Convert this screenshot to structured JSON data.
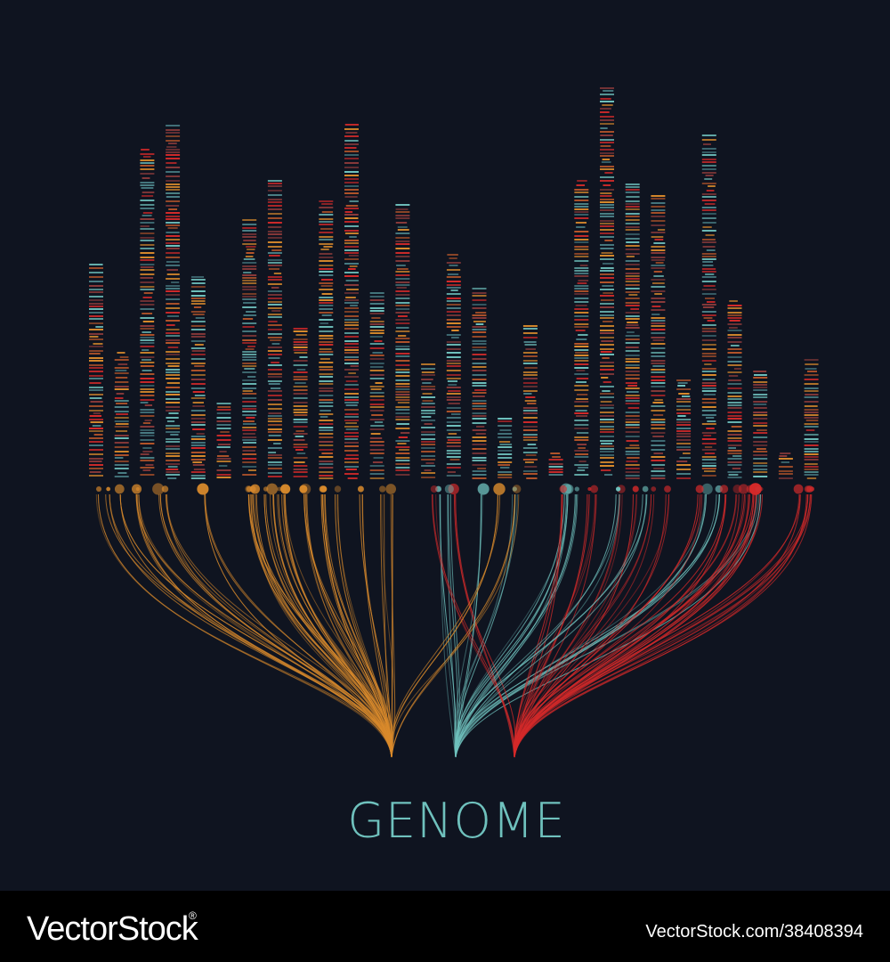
{
  "title": "GENOME",
  "watermark": {
    "brand": "VectorStock",
    "registered": "®",
    "url": "VectorStock.com/38408394"
  }
}
